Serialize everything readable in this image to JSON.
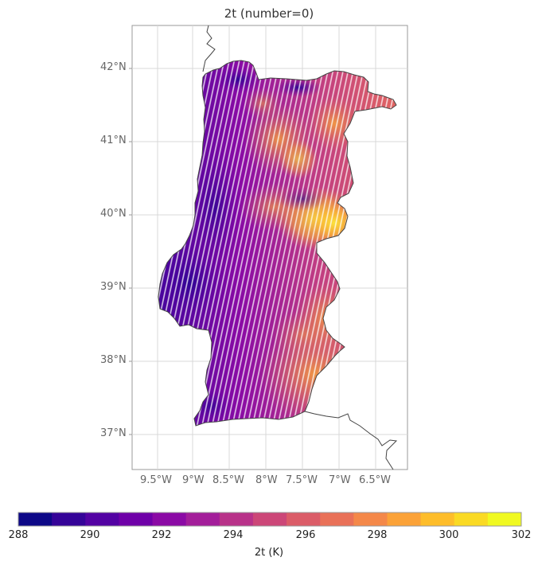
{
  "title": "2t (number=0)",
  "map": {
    "lat_labels": [
      "42°N",
      "41°N",
      "40°N",
      "39°N",
      "38°N",
      "37°N"
    ],
    "lon_labels": [
      "9.5°W",
      "9°W",
      "8.5°W",
      "8°W",
      "7.5°W",
      "7°W",
      "6.5°W"
    ],
    "lat_range": [
      36.6,
      42.6
    ],
    "lon_range": [
      -9.85,
      -6.1
    ],
    "region": "Portugal (mainland)",
    "variable": "2t",
    "colormap": "plasma"
  },
  "colorbar": {
    "label": "2t (K)",
    "ticks": [
      "288",
      "290",
      "292",
      "294",
      "296",
      "298",
      "300",
      "302"
    ],
    "min": 288,
    "max": 302,
    "step": 1,
    "colors": [
      "#0d0887",
      "#350498",
      "#5302a3",
      "#6f00a8",
      "#8b0aa5",
      "#a31e9a",
      "#b83289",
      "#cc4778",
      "#db5c68",
      "#e97158",
      "#f48849",
      "#fba238",
      "#febd2a",
      "#fada24",
      "#f0f921"
    ]
  }
}
